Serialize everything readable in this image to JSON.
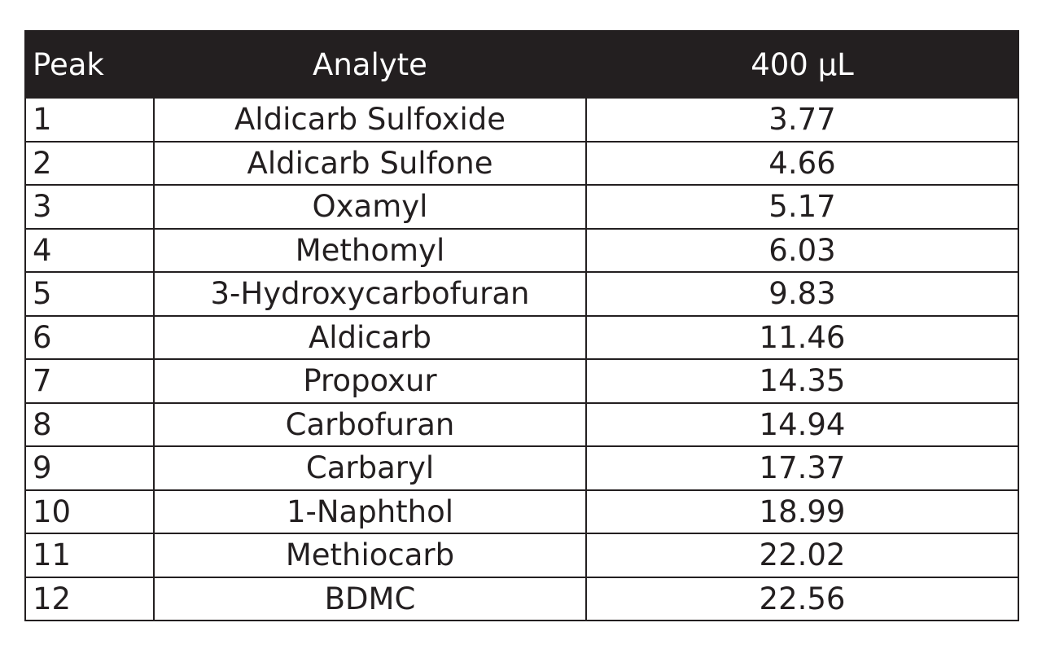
{
  "table": {
    "headers": {
      "peak": "Peak",
      "analyte": "Analyte",
      "volume": "400 µL"
    },
    "rows": [
      {
        "peak": "1",
        "analyte": "Aldicarb Sulfoxide",
        "value": "3.77"
      },
      {
        "peak": "2",
        "analyte": "Aldicarb Sulfone",
        "value": "4.66"
      },
      {
        "peak": "3",
        "analyte": "Oxamyl",
        "value": "5.17"
      },
      {
        "peak": "4",
        "analyte": "Methomyl",
        "value": "6.03"
      },
      {
        "peak": "5",
        "analyte": "3-Hydroxycarbofuran",
        "value": "9.83"
      },
      {
        "peak": "6",
        "analyte": "Aldicarb",
        "value": "11.46"
      },
      {
        "peak": "7",
        "analyte": "Propoxur",
        "value": "14.35"
      },
      {
        "peak": "8",
        "analyte": "Carbofuran",
        "value": "14.94"
      },
      {
        "peak": "9",
        "analyte": "Carbaryl",
        "value": "17.37"
      },
      {
        "peak": "10",
        "analyte": "1-Naphthol",
        "value": "18.99"
      },
      {
        "peak": "11",
        "analyte": "Methiocarb",
        "value": "22.02"
      },
      {
        "peak": "12",
        "analyte": "BDMC",
        "value": "22.56"
      }
    ]
  },
  "colors": {
    "header_background": "#231f20",
    "header_text": "#ffffff",
    "border": "#231f20",
    "body_text": "#231f20"
  }
}
